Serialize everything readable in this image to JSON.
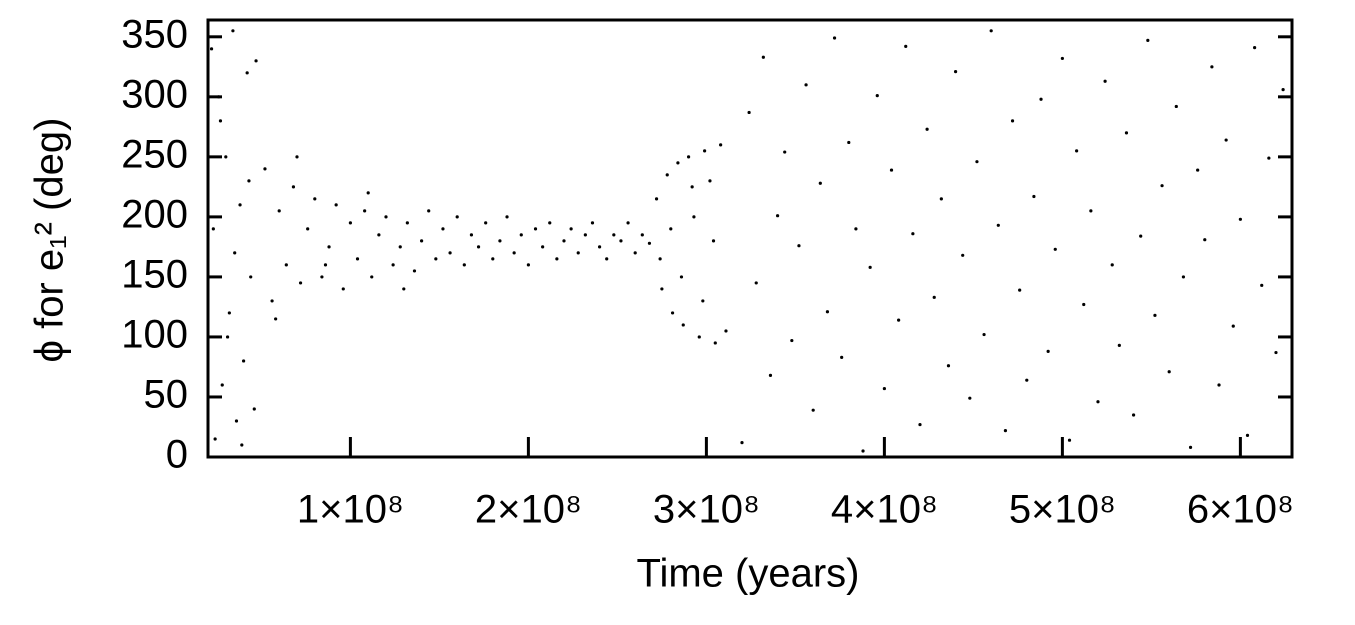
{
  "chart_data": {
    "type": "scatter",
    "xlabel": "Time (years)",
    "ylabel": "ϕ for e₁² (deg)",
    "color": "#000000",
    "xlim": [
      20000000.0,
      629000000.0
    ],
    "ylim": [
      0,
      364
    ],
    "xticks": [
      {
        "value": 100000000.0,
        "label": "1×10⁸"
      },
      {
        "value": 200000000.0,
        "label": "2×10⁸"
      },
      {
        "value": 300000000.0,
        "label": "3×10⁸"
      },
      {
        "value": 400000000.0,
        "label": "4×10⁸"
      },
      {
        "value": 500000000.0,
        "label": "5×10⁸"
      },
      {
        "value": 600000000.0,
        "label": "6×10⁸"
      }
    ],
    "yticks": [
      0,
      50,
      100,
      150,
      200,
      250,
      300,
      350
    ],
    "x": [
      22000000.0,
      24000000.0,
      26000000.0,
      28000000.0,
      30000000.0,
      32000000.0,
      34000000.0,
      36000000.0,
      38000000.0,
      40000000.0,
      42000000.0,
      44000000.0,
      46000000.0,
      23000000.0,
      27000000.0,
      31000000.0,
      35000000.0,
      39000000.0,
      43000000.0,
      47000000.0,
      52000000.0,
      56000000.0,
      60000000.0,
      64000000.0,
      68000000.0,
      72000000.0,
      76000000.0,
      80000000.0,
      84000000.0,
      88000000.0,
      92000000.0,
      96000000.0,
      100000000.0,
      104000000.0,
      108000000.0,
      112000000.0,
      116000000.0,
      120000000.0,
      124000000.0,
      128000000.0,
      132000000.0,
      136000000.0,
      140000000.0,
      144000000.0,
      148000000.0,
      152000000.0,
      156000000.0,
      160000000.0,
      164000000.0,
      168000000.0,
      172000000.0,
      176000000.0,
      180000000.0,
      184000000.0,
      188000000.0,
      192000000.0,
      196000000.0,
      200000000.0,
      204000000.0,
      208000000.0,
      212000000.0,
      216000000.0,
      220000000.0,
      224000000.0,
      228000000.0,
      232000000.0,
      236000000.0,
      240000000.0,
      244000000.0,
      248000000.0,
      252000000.0,
      256000000.0,
      260000000.0,
      264000000.0,
      268000000.0,
      58000000.0,
      70000000.0,
      86000000.0,
      110000000.0,
      130000000.0,
      272000000.0,
      275000000.0,
      278000000.0,
      281000000.0,
      284000000.0,
      287000000.0,
      290000000.0,
      293000000.0,
      296000000.0,
      299000000.0,
      302000000.0,
      305000000.0,
      308000000.0,
      311000000.0,
      274000000.0,
      280000000.0,
      286000000.0,
      292000000.0,
      298000000.0,
      304000000.0,
      320000000.0,
      324000000.0,
      328000000.0,
      332000000.0,
      336000000.0,
      340000000.0,
      344000000.0,
      348000000.0,
      352000000.0,
      356000000.0,
      360000000.0,
      364000000.0,
      368000000.0,
      372000000.0,
      376000000.0,
      380000000.0,
      384000000.0,
      388000000.0,
      392000000.0,
      396000000.0,
      400000000.0,
      404000000.0,
      408000000.0,
      412000000.0,
      416000000.0,
      420000000.0,
      424000000.0,
      428000000.0,
      432000000.0,
      436000000.0,
      440000000.0,
      444000000.0,
      448000000.0,
      452000000.0,
      456000000.0,
      460000000.0,
      464000000.0,
      468000000.0,
      472000000.0,
      476000000.0,
      480000000.0,
      484000000.0,
      488000000.0,
      492000000.0,
      496000000.0,
      500000000.0,
      504000000.0,
      508000000.0,
      512000000.0,
      516000000.0,
      520000000.0,
      524000000.0,
      528000000.0,
      532000000.0,
      536000000.0,
      540000000.0,
      544000000.0,
      548000000.0,
      552000000.0,
      556000000.0,
      560000000.0,
      564000000.0,
      568000000.0,
      572000000.0,
      576000000.0,
      580000000.0,
      584000000.0,
      588000000.0,
      592000000.0,
      596000000.0,
      600000000.0,
      604000000.0,
      608000000.0,
      612000000.0,
      616000000.0,
      620000000.0,
      624000000.0
    ],
    "values": [
      340,
      15,
      300,
      60,
      250,
      120,
      355,
      30,
      210,
      80,
      320,
      150,
      40,
      190,
      280,
      100,
      170,
      10,
      230,
      330,
      240,
      130,
      205,
      160,
      225,
      145,
      190,
      215,
      150,
      175,
      210,
      140,
      195,
      165,
      205,
      150,
      185,
      200,
      160,
      175,
      195,
      155,
      180,
      205,
      165,
      190,
      170,
      200,
      160,
      185,
      175,
      195,
      165,
      180,
      200,
      170,
      185,
      160,
      190,
      175,
      195,
      165,
      180,
      190,
      170,
      185,
      195,
      175,
      165,
      185,
      180,
      195,
      170,
      185,
      178,
      115,
      250,
      160,
      220,
      140,
      215,
      140,
      235,
      120,
      245,
      110,
      250,
      200,
      100,
      255,
      230,
      95,
      260,
      105,
      165,
      190,
      150,
      225,
      130,
      180,
      12,
      287,
      145,
      333,
      68,
      201,
      254,
      97,
      176,
      310,
      39,
      228,
      121,
      349,
      83,
      262,
      190,
      5,
      158,
      301,
      57,
      239,
      114,
      342,
      186,
      27,
      273,
      133,
      215,
      76,
      321,
      168,
      49,
      246,
      102,
      355,
      193,
      22,
      280,
      139,
      64,
      217,
      298,
      88,
      173,
      332,
      14,
      255,
      127,
      205,
      46,
      313,
      160,
      93,
      270,
      35,
      184,
      347,
      118,
      226,
      71,
      292,
      150,
      8,
      239,
      181,
      325,
      60,
      264,
      109,
      198,
      18,
      341,
      143,
      249,
      87,
      306
    ]
  }
}
